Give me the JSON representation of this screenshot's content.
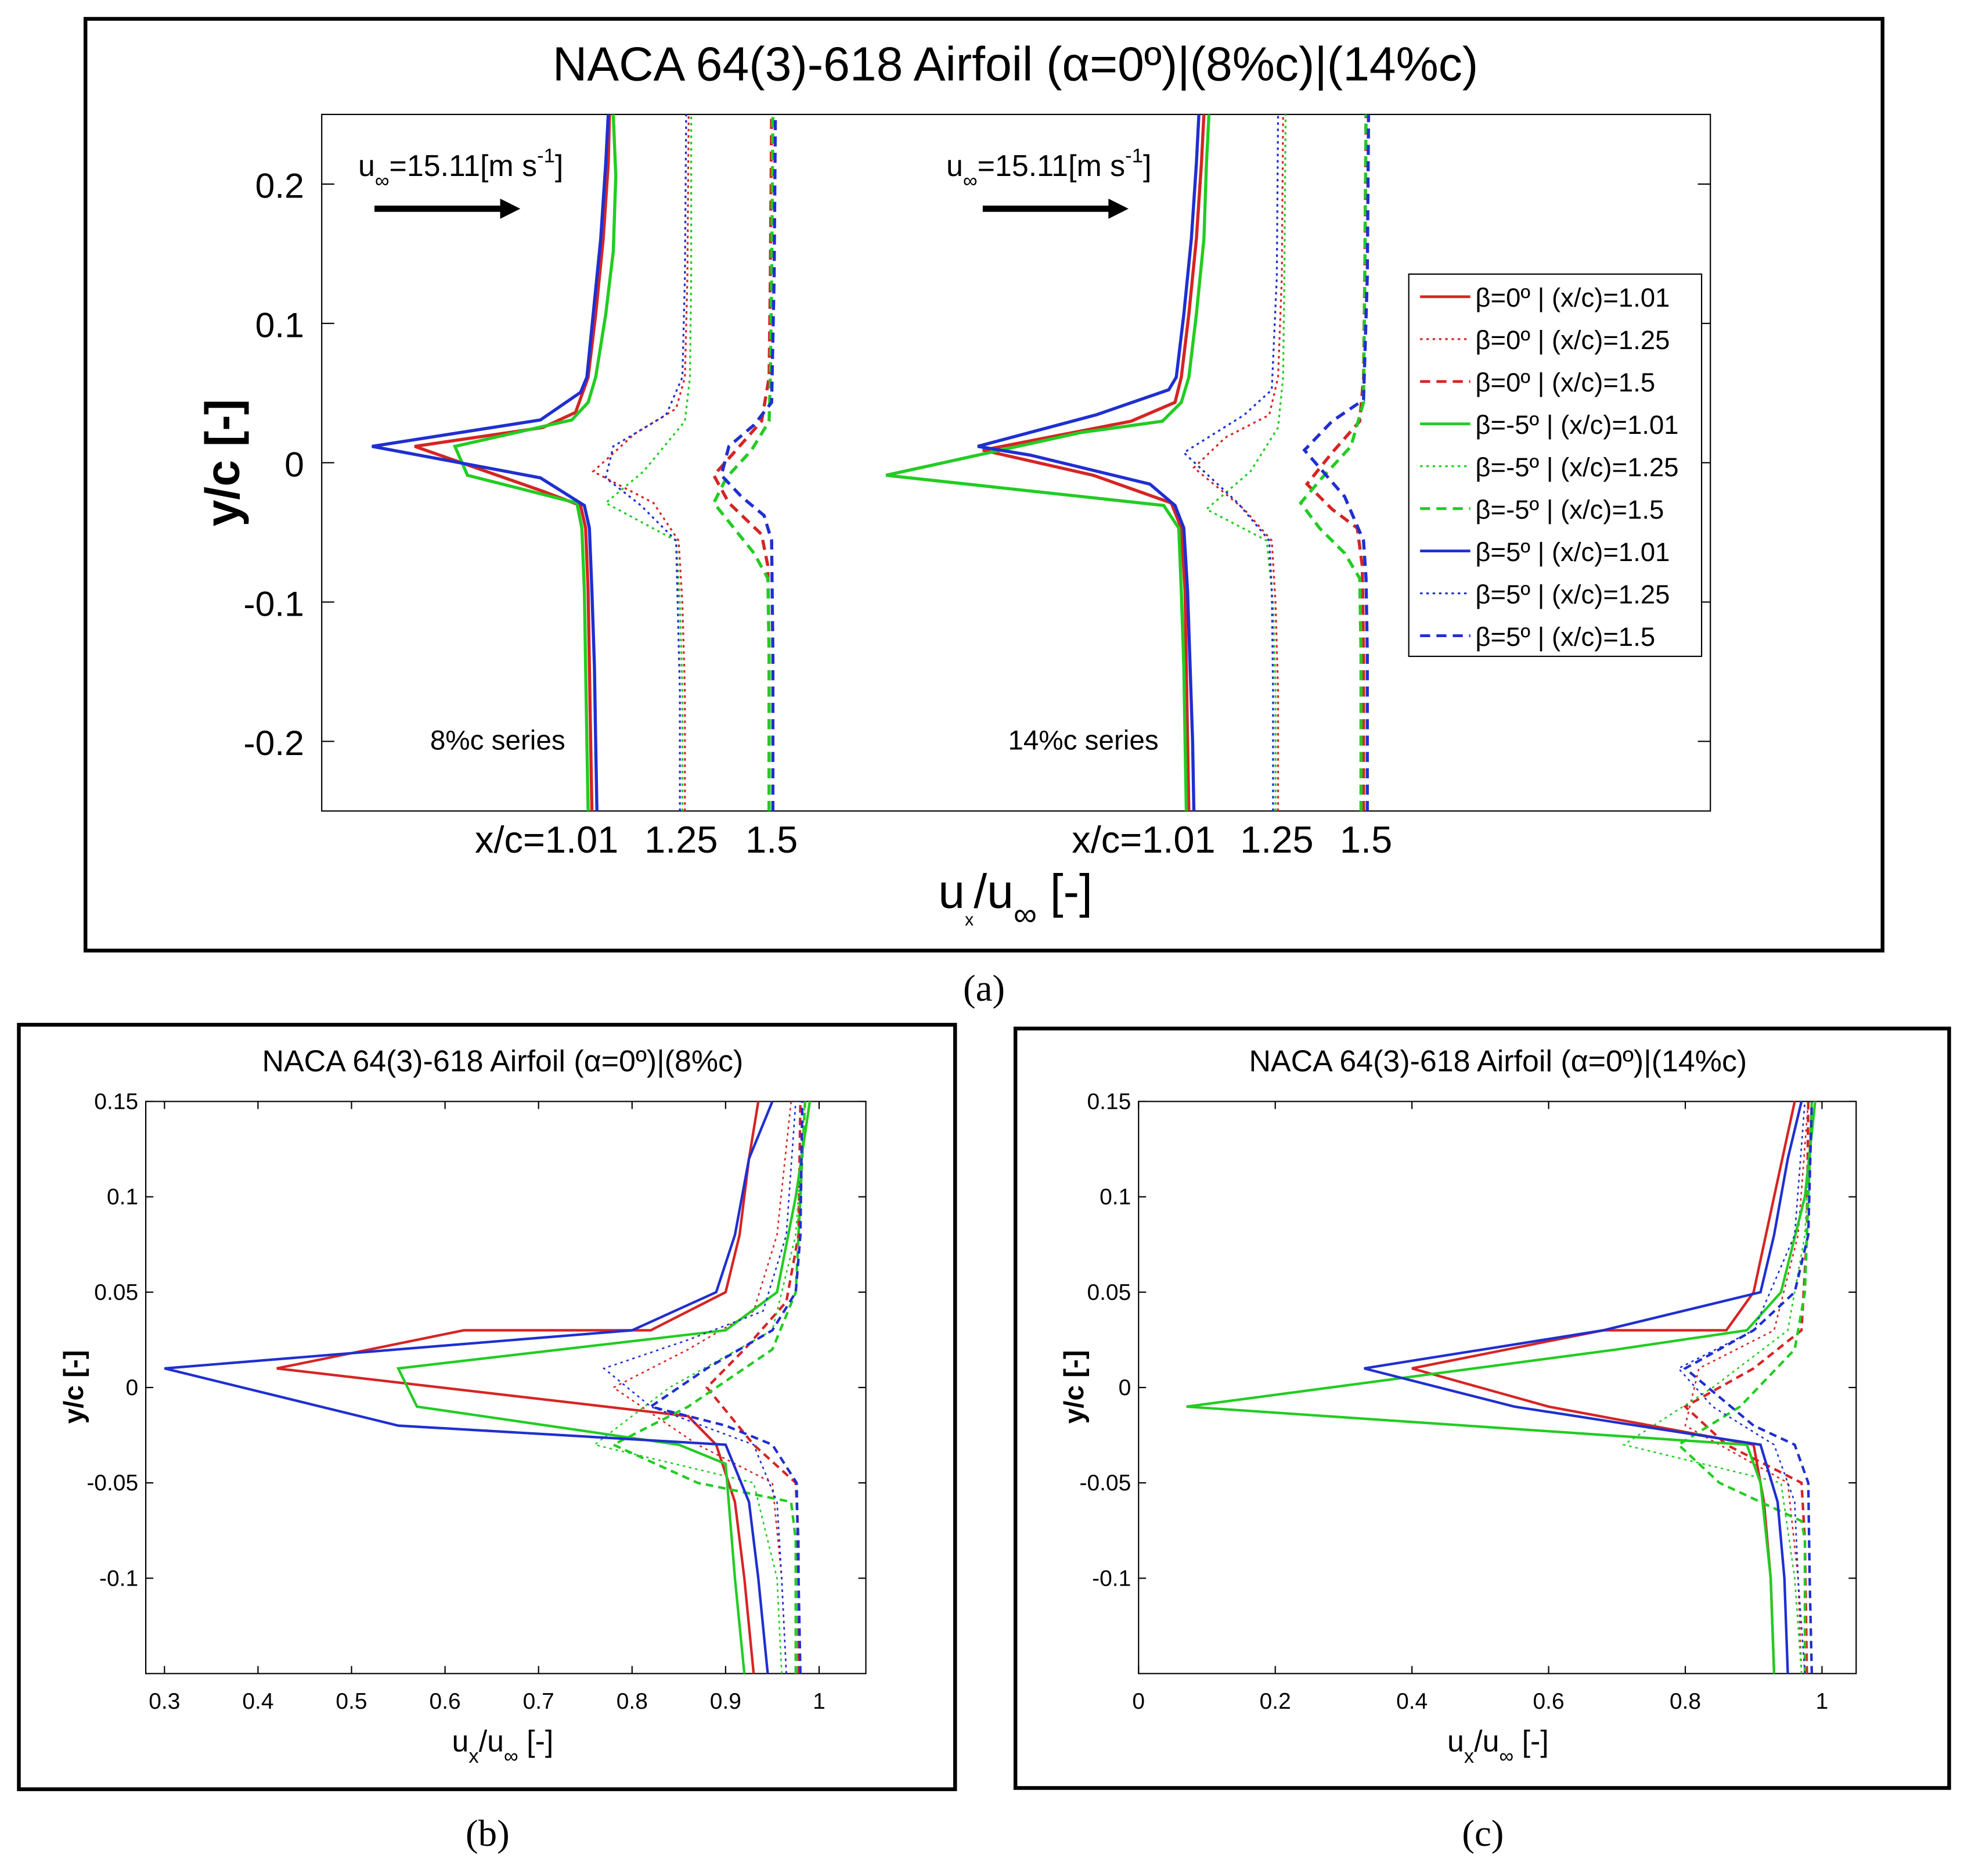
{
  "figure": {
    "panel_labels": [
      "(a)",
      "(b)",
      "(c)"
    ]
  },
  "colors": {
    "red": "#d62424",
    "green": "#22cc22",
    "blue": "#1f2fd0"
  },
  "chart_data": [
    {
      "panel": "(a)",
      "type": "line",
      "title": "NACA 64(3)-618 Airfoil (α=0º)|(8%c)|(14%c)",
      "ylabel": "y/c [-]",
      "xlabel_main": "u",
      "xlabel_sub1": "x",
      "xlabel_mid": "/u",
      "xlabel_sub2": "∞",
      "xlabel_end": " [-]",
      "ylim": [
        -0.25,
        0.25
      ],
      "yticks": [
        0.2,
        0.1,
        0,
        -0.1,
        -0.2
      ],
      "ytick_labels": [
        "0.2",
        "0.1",
        "0",
        "-0.1",
        "-0.2"
      ],
      "station_labels": [
        "x/c=1.01",
        "1.25",
        "1.5",
        "x/c=1.01",
        "1.25",
        "1.5"
      ],
      "freestream_label_pre": "u",
      "freestream_label_sub": "∞",
      "freestream_label_mid": "=15.11[m s",
      "freestream_label_sup": "-1",
      "freestream_label_end": "]",
      "series_notes": [
        "8%c series",
        "14%c series"
      ],
      "legend": [
        "β=0º | (x/c)=1.01",
        "β=0º | (x/c)=1.25",
        "β=0º | (x/c)=1.5",
        "β=-5º | (x/c)=1.01",
        "β=-5º | (x/c)=1.25",
        "β=-5º | (x/c)=1.5",
        "β=5º | (x/c)=1.01",
        "β=5º | (x/c)=1.25",
        "β=5º | (x/c)=1.5"
      ],
      "legend_placement": "right"
    },
    {
      "panel": "(b)",
      "type": "line",
      "title": "NACA 64(3)-618 Airfoil (α=0º)|(8%c)",
      "ylabel": "y/c [-]",
      "xlabel_main": "u",
      "xlabel_sub1": "x",
      "xlabel_mid": "/u",
      "xlabel_sub2": "∞",
      "xlabel_end": " [-]",
      "xlim": [
        0.28,
        1.05
      ],
      "ylim": [
        -0.15,
        0.15
      ],
      "xticks": [
        0.3,
        0.4,
        0.5,
        0.6,
        0.7,
        0.8,
        0.9,
        1
      ],
      "xtick_labels": [
        "0.3",
        "0.4",
        "0.5",
        "0.6",
        "0.7",
        "0.8",
        "0.9",
        "1"
      ],
      "yticks": [
        0.15,
        0.1,
        0.05,
        0,
        -0.05,
        -0.1
      ],
      "ytick_labels": [
        "0.15",
        "0.1",
        "0.05",
        "0",
        "-0.05",
        "-0.1"
      ],
      "series": [
        {
          "name": "β=0º | (x/c)=1.01",
          "color": "red",
          "dash": "solid",
          "x": [
            0.93,
            0.92,
            0.91,
            0.89,
            0.86,
            0.42,
            0.62,
            0.82,
            0.9,
            0.915,
            0.925,
            0.935
          ],
          "y": [
            -0.15,
            -0.1,
            -0.06,
            -0.03,
            -0.015,
            0.01,
            0.03,
            0.03,
            0.05,
            0.08,
            0.12,
            0.15
          ]
        },
        {
          "name": "β=0º | (x/c)=1.25",
          "color": "red",
          "dash": "dotted",
          "x": [
            0.965,
            0.96,
            0.95,
            0.87,
            0.78,
            0.86,
            0.93,
            0.955,
            0.97
          ],
          "y": [
            -0.15,
            -0.1,
            -0.05,
            -0.03,
            0.0,
            0.02,
            0.04,
            0.08,
            0.15
          ]
        },
        {
          "name": "β=0º | (x/c)=1.5",
          "color": "red",
          "dash": "dashed",
          "x": [
            0.978,
            0.978,
            0.975,
            0.93,
            0.88,
            0.92,
            0.965,
            0.978,
            0.98
          ],
          "y": [
            -0.15,
            -0.08,
            -0.05,
            -0.03,
            0.0,
            0.02,
            0.045,
            0.08,
            0.15
          ]
        },
        {
          "name": "β=-5º | (x/c)=1.01",
          "color": "green",
          "dash": "solid",
          "x": [
            0.92,
            0.91,
            0.9,
            0.85,
            0.57,
            0.55,
            0.9,
            0.955,
            0.975,
            0.99
          ],
          "y": [
            -0.15,
            -0.1,
            -0.04,
            -0.03,
            -0.01,
            0.01,
            0.03,
            0.05,
            0.1,
            0.15
          ]
        },
        {
          "name": "β=-5º | (x/c)=1.25",
          "color": "green",
          "dash": "dotted",
          "x": [
            0.96,
            0.955,
            0.93,
            0.76,
            0.84,
            0.95,
            0.975,
            0.985
          ],
          "y": [
            -0.15,
            -0.1,
            -0.05,
            -0.03,
            0.0,
            0.03,
            0.08,
            0.15
          ]
        },
        {
          "name": "β=-5º | (x/c)=1.5",
          "color": "green",
          "dash": "dashed",
          "x": [
            0.975,
            0.975,
            0.97,
            0.87,
            0.78,
            0.86,
            0.95,
            0.975,
            0.985
          ],
          "y": [
            -0.15,
            -0.08,
            -0.06,
            -0.05,
            -0.03,
            -0.01,
            0.02,
            0.05,
            0.15
          ]
        },
        {
          "name": "β=5º | (x/c)=1.01",
          "color": "blue",
          "dash": "solid",
          "x": [
            0.945,
            0.935,
            0.925,
            0.9,
            0.55,
            0.3,
            0.8,
            0.89,
            0.91,
            0.925,
            0.95
          ],
          "y": [
            -0.15,
            -0.1,
            -0.06,
            -0.03,
            -0.02,
            0.01,
            0.03,
            0.05,
            0.08,
            0.12,
            0.15
          ]
        },
        {
          "name": "β=5º | (x/c)=1.25",
          "color": "blue",
          "dash": "dotted",
          "x": [
            0.965,
            0.96,
            0.955,
            0.93,
            0.82,
            0.77,
            0.86,
            0.94,
            0.965,
            0.975
          ],
          "y": [
            -0.15,
            -0.1,
            -0.06,
            -0.03,
            -0.01,
            0.01,
            0.025,
            0.04,
            0.08,
            0.15
          ]
        },
        {
          "name": "β=5º | (x/c)=1.5",
          "color": "blue",
          "dash": "dashed",
          "x": [
            0.98,
            0.978,
            0.976,
            0.95,
            0.9,
            0.82,
            0.88,
            0.95,
            0.975,
            0.98,
            0.982
          ],
          "y": [
            -0.15,
            -0.1,
            -0.05,
            -0.03,
            -0.02,
            -0.01,
            0.01,
            0.03,
            0.05,
            0.08,
            0.15
          ]
        }
      ]
    },
    {
      "panel": "(c)",
      "type": "line",
      "title": "NACA 64(3)-618 Airfoil (α=0º)|(14%c)",
      "ylabel": "y/c [-]",
      "xlabel_main": "u",
      "xlabel_sub1": "x",
      "xlabel_mid": "/u",
      "xlabel_sub2": "∞",
      "xlabel_end": " [-]",
      "xlim": [
        0,
        1.05
      ],
      "ylim": [
        -0.15,
        0.15
      ],
      "xticks": [
        0,
        0.2,
        0.4,
        0.6,
        0.8,
        1
      ],
      "xtick_labels": [
        "0",
        "0.2",
        "0.4",
        "0.6",
        "0.8",
        "1"
      ],
      "yticks": [
        0.15,
        0.1,
        0.05,
        0,
        -0.05,
        -0.1
      ],
      "ytick_labels": [
        "0.15",
        "0.1",
        "0.05",
        "0",
        "-0.05",
        "-0.1"
      ],
      "series": [
        {
          "name": "β=0º | (x/c)=1.01",
          "color": "red",
          "dash": "solid",
          "x": [
            0.93,
            0.925,
            0.915,
            0.9,
            0.6,
            0.4,
            0.68,
            0.86,
            0.9,
            0.93,
            0.96
          ],
          "y": [
            -0.15,
            -0.1,
            -0.06,
            -0.03,
            -0.01,
            0.01,
            0.03,
            0.03,
            0.05,
            0.1,
            0.15
          ]
        },
        {
          "name": "β=0º | (x/c)=1.25",
          "color": "red",
          "dash": "dotted",
          "x": [
            0.97,
            0.965,
            0.95,
            0.8,
            0.82,
            0.93,
            0.965,
            0.98
          ],
          "y": [
            -0.15,
            -0.1,
            -0.05,
            -0.02,
            0.01,
            0.03,
            0.08,
            0.15
          ]
        },
        {
          "name": "β=0º | (x/c)=1.5",
          "color": "red",
          "dash": "dashed",
          "x": [
            0.978,
            0.975,
            0.97,
            0.86,
            0.8,
            0.9,
            0.97,
            0.978,
            0.98
          ],
          "y": [
            -0.15,
            -0.08,
            -0.05,
            -0.03,
            -0.01,
            0.01,
            0.03,
            0.08,
            0.15
          ]
        },
        {
          "name": "β=-5º | (x/c)=1.01",
          "color": "green",
          "dash": "solid",
          "x": [
            0.93,
            0.925,
            0.91,
            0.89,
            0.07,
            0.7,
            0.89,
            0.94,
            0.975,
            0.99
          ],
          "y": [
            -0.15,
            -0.1,
            -0.05,
            -0.03,
            -0.01,
            0.02,
            0.03,
            0.05,
            0.1,
            0.15
          ]
        },
        {
          "name": "β=-5º | (x/c)=1.25",
          "color": "green",
          "dash": "dotted",
          "x": [
            0.97,
            0.96,
            0.94,
            0.71,
            0.84,
            0.95,
            0.975,
            0.985
          ],
          "y": [
            -0.15,
            -0.1,
            -0.05,
            -0.03,
            0.0,
            0.03,
            0.08,
            0.15
          ]
        },
        {
          "name": "β=-5º | (x/c)=1.5",
          "color": "green",
          "dash": "dashed",
          "x": [
            0.975,
            0.975,
            0.97,
            0.85,
            0.79,
            0.88,
            0.96,
            0.975,
            0.985
          ],
          "y": [
            -0.15,
            -0.08,
            -0.07,
            -0.05,
            -0.03,
            -0.01,
            0.02,
            0.05,
            0.15
          ]
        },
        {
          "name": "β=5º | (x/c)=1.01",
          "color": "blue",
          "dash": "solid",
          "x": [
            0.95,
            0.945,
            0.935,
            0.91,
            0.55,
            0.33,
            0.68,
            0.91,
            0.93,
            0.95,
            0.97
          ],
          "y": [
            -0.15,
            -0.1,
            -0.06,
            -0.03,
            -0.01,
            0.01,
            0.03,
            0.05,
            0.08,
            0.12,
            0.15
          ]
        },
        {
          "name": "β=5º | (x/c)=1.25",
          "color": "blue",
          "dash": "dotted",
          "x": [
            0.975,
            0.965,
            0.96,
            0.93,
            0.84,
            0.79,
            0.9,
            0.96,
            0.975
          ],
          "y": [
            -0.15,
            -0.1,
            -0.06,
            -0.03,
            -0.01,
            0.01,
            0.03,
            0.08,
            0.15
          ]
        },
        {
          "name": "β=5º | (x/c)=1.5",
          "color": "blue",
          "dash": "dashed",
          "x": [
            0.985,
            0.982,
            0.98,
            0.96,
            0.9,
            0.8,
            0.9,
            0.96,
            0.98,
            0.985
          ],
          "y": [
            -0.15,
            -0.1,
            -0.05,
            -0.03,
            -0.02,
            0.01,
            0.03,
            0.05,
            0.08,
            0.15
          ]
        }
      ]
    }
  ]
}
